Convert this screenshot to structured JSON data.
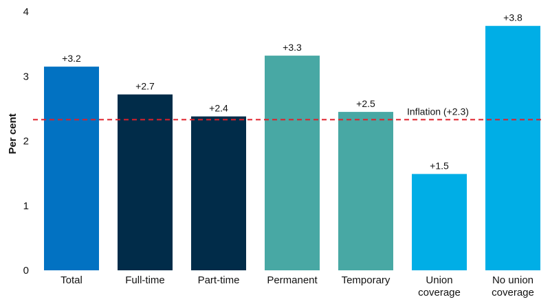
{
  "chart_data": {
    "type": "bar",
    "ylabel": "Per cent",
    "ylim": [
      0,
      4
    ],
    "yticks": [
      "0",
      "1",
      "2",
      "3",
      "4"
    ],
    "grid": false,
    "legend": "none",
    "categories": [
      [
        "Total"
      ],
      [
        "Full-time"
      ],
      [
        "Part-time"
      ],
      [
        "Permanent"
      ],
      [
        "Temporary"
      ],
      [
        "Union",
        "coverage"
      ],
      [
        "No union",
        "coverage"
      ]
    ],
    "values": [
      3.15,
      2.72,
      2.38,
      3.32,
      2.45,
      1.49,
      3.78
    ],
    "data_labels": [
      "+3.2",
      "+2.7",
      "+2.4",
      "+3.3",
      "+2.5",
      "+1.5",
      "+3.8"
    ],
    "colors": [
      "#0272C2",
      "#012C49",
      "#012C49",
      "#48A8A4",
      "#48A8A4",
      "#00AEE6",
      "#00AEE6"
    ],
    "reference_line": {
      "value": 2.33,
      "label": "Inflation (+2.3)",
      "color": "#E0202A",
      "style": "dashed"
    }
  }
}
